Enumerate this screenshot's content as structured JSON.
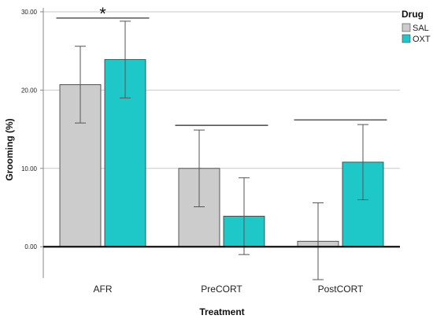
{
  "chart_data": {
    "type": "bar",
    "categories": [
      "AFR",
      "PreCORT",
      "PostCORT"
    ],
    "series": [
      {
        "name": "SAL",
        "color": "#cccccc",
        "values": [
          20.7,
          10.0,
          0.7
        ],
        "error": [
          4.9,
          4.9,
          4.9
        ]
      },
      {
        "name": "OXT",
        "color": "#1ec8c8",
        "values": [
          23.9,
          3.9,
          10.8
        ],
        "error": [
          4.9,
          4.9,
          4.8
        ]
      }
    ],
    "xlabel": "Treatment",
    "ylabel": "Grooming (%)",
    "ylim": [
      -4,
      30.5
    ],
    "yticks": [
      0,
      10,
      20,
      30
    ],
    "ytick_labels": [
      "0.00",
      "10.00",
      "20.00",
      "30.00"
    ],
    "grid": true,
    "legend": {
      "title": "Drug",
      "position": "top-right"
    },
    "significance": {
      "category": "AFR",
      "label": "*"
    }
  }
}
